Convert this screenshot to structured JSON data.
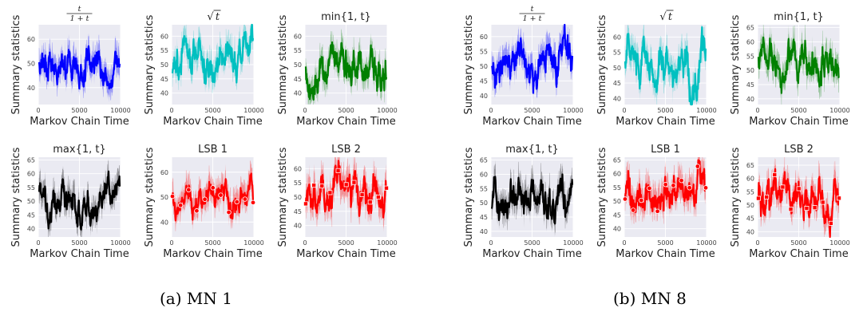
{
  "captions": {
    "a": "(a) MN 1",
    "b": "(b) MN 8"
  },
  "chart_data": [
    {
      "id": "a-t1",
      "type": "line",
      "group": "a",
      "title_kind": "frac",
      "title": "t/(1+t)",
      "xlabel": "Markov Chain Time",
      "ylabel": "Summary statistics",
      "xlim": [
        0,
        10000
      ],
      "ylim": [
        33,
        66
      ],
      "xticks": [
        0,
        5000,
        10000
      ],
      "yticks": [
        40,
        50,
        60
      ],
      "mean": 50,
      "spread": 4.5,
      "band": 7,
      "color": "#0000ff",
      "marker": "none",
      "grid": true,
      "background": "#eaeaf2",
      "seed": 11
    },
    {
      "id": "a-sqrt",
      "type": "line",
      "group": "a",
      "title_kind": "sqrt",
      "title": "√t",
      "xlabel": "Markov Chain Time",
      "ylabel": "Summary statistics",
      "xlim": [
        0,
        10000
      ],
      "ylim": [
        36,
        64
      ],
      "xticks": [
        0,
        5000,
        10000
      ],
      "yticks": [
        40,
        45,
        50,
        55,
        60
      ],
      "mean": 50,
      "spread": 4.5,
      "band": 6,
      "color": "#00c0c0",
      "marker": "none",
      "grid": true,
      "background": "#eaeaf2",
      "seed": 23
    },
    {
      "id": "a-min",
      "type": "line",
      "group": "a",
      "title_kind": "plain",
      "title": "min{1, t}",
      "xlabel": "Markov Chain Time",
      "ylabel": "Summary statistics",
      "xlim": [
        0,
        10000
      ],
      "ylim": [
        36,
        64
      ],
      "xticks": [
        0,
        5000,
        10000
      ],
      "yticks": [
        40,
        45,
        50,
        55,
        60
      ],
      "mean": 50,
      "spread": 4.5,
      "band": 6,
      "color": "#008000",
      "marker": "none",
      "grid": true,
      "background": "#eaeaf2",
      "seed": 37
    },
    {
      "id": "a-max",
      "type": "line",
      "group": "a",
      "title_kind": "plain",
      "title": "max{1, t}",
      "xlabel": "Markov Chain Time",
      "ylabel": "Summary statistics",
      "xlim": [
        0,
        10000
      ],
      "ylim": [
        37,
        66
      ],
      "xticks": [
        0,
        5000,
        10000
      ],
      "yticks": [
        40,
        45,
        50,
        55,
        60,
        65
      ],
      "mean": 50,
      "spread": 4.5,
      "band": 6,
      "color": "#000000",
      "marker": "none",
      "grid": true,
      "background": "#eaeaf2",
      "seed": 41
    },
    {
      "id": "a-lsb1",
      "type": "line",
      "group": "a",
      "title_kind": "plain",
      "title": "LSB 1",
      "xlabel": "Markov Chain Time",
      "ylabel": "Summary statistics",
      "xlim": [
        0,
        10000
      ],
      "ylim": [
        34,
        66
      ],
      "xticks": [
        0,
        5000,
        10000
      ],
      "yticks": [
        40,
        50,
        60
      ],
      "mean": 49,
      "spread": 4,
      "band": 7,
      "color": "#ff0000",
      "marker": "circle",
      "grid": true,
      "background": "#eaeaf2",
      "seed": 53
    },
    {
      "id": "a-lsb2",
      "type": "line",
      "group": "a",
      "title_kind": "plain",
      "title": "LSB 2",
      "xlabel": "Markov Chain Time",
      "ylabel": "Summary statistics",
      "xlim": [
        0,
        10000
      ],
      "ylim": [
        36,
        64
      ],
      "xticks": [
        0,
        5000,
        10000
      ],
      "yticks": [
        40,
        45,
        50,
        55,
        60
      ],
      "mean": 49,
      "spread": 4,
      "band": 7,
      "color": "#ff0000",
      "marker": "square",
      "grid": true,
      "background": "#eaeaf2",
      "seed": 67
    },
    {
      "id": "b-t1",
      "type": "line",
      "group": "b",
      "title_kind": "frac",
      "title": "t/(1+t)",
      "xlabel": "Markov Chain Time",
      "ylabel": "Summary statistics",
      "xlim": [
        0,
        10000
      ],
      "ylim": [
        37,
        64
      ],
      "xticks": [
        0,
        5000,
        10000
      ],
      "yticks": [
        40,
        45,
        50,
        55,
        60
      ],
      "mean": 51,
      "spread": 4.5,
      "band": 6,
      "color": "#0000ff",
      "marker": "none",
      "grid": true,
      "background": "#eaeaf2",
      "seed": 71
    },
    {
      "id": "b-sqrt",
      "type": "line",
      "group": "b",
      "title_kind": "sqrt",
      "title": "√t",
      "xlabel": "Markov Chain Time",
      "ylabel": "Summary statistics",
      "xlim": [
        0,
        10000
      ],
      "ylim": [
        38,
        64
      ],
      "xticks": [
        0,
        5000,
        10000
      ],
      "yticks": [
        40,
        45,
        50,
        55,
        60
      ],
      "mean": 51,
      "spread": 4.5,
      "band": 6,
      "color": "#00c0c0",
      "marker": "none",
      "grid": true,
      "background": "#eaeaf2",
      "seed": 83
    },
    {
      "id": "b-min",
      "type": "line",
      "group": "b",
      "title_kind": "plain",
      "title": "min{1, t}",
      "xlabel": "Markov Chain Time",
      "ylabel": "Summary statistics",
      "xlim": [
        0,
        10000
      ],
      "ylim": [
        38,
        66
      ],
      "xticks": [
        0,
        5000,
        10000
      ],
      "yticks": [
        40,
        45,
        50,
        55,
        60,
        65
      ],
      "mean": 52,
      "spread": 4.5,
      "band": 6,
      "color": "#008000",
      "marker": "none",
      "grid": true,
      "background": "#eaeaf2",
      "seed": 97
    },
    {
      "id": "b-max",
      "type": "line",
      "group": "b",
      "title_kind": "plain",
      "title": "max{1, t}",
      "xlabel": "Markov Chain Time",
      "ylabel": "Summary statistics",
      "xlim": [
        0,
        10000
      ],
      "ylim": [
        38,
        66
      ],
      "xticks": [
        0,
        5000,
        10000
      ],
      "yticks": [
        40,
        45,
        50,
        55,
        60,
        65
      ],
      "mean": 51,
      "spread": 4.5,
      "band": 6,
      "color": "#000000",
      "marker": "none",
      "grid": true,
      "background": "#eaeaf2",
      "seed": 101
    },
    {
      "id": "b-lsb1",
      "type": "line",
      "group": "b",
      "title_kind": "plain",
      "title": "LSB 1",
      "xlabel": "Markov Chain Time",
      "ylabel": "Summary statistics",
      "xlim": [
        0,
        10000
      ],
      "ylim": [
        37,
        66
      ],
      "xticks": [
        0,
        5000,
        10000
      ],
      "yticks": [
        40,
        45,
        50,
        55,
        60,
        65
      ],
      "mean": 53,
      "spread": 4.5,
      "band": 7,
      "color": "#ff0000",
      "marker": "circle",
      "grid": true,
      "background": "#eaeaf2",
      "seed": 113
    },
    {
      "id": "b-lsb2",
      "type": "line",
      "group": "b",
      "title_kind": "plain",
      "title": "LSB 2",
      "xlabel": "Markov Chain Time",
      "ylabel": "Summary statistics",
      "xlim": [
        0,
        10000
      ],
      "ylim": [
        38,
        68
      ],
      "xticks": [
        0,
        5000,
        10000
      ],
      "yticks": [
        40,
        45,
        50,
        55,
        60,
        65
      ],
      "mean": 52,
      "spread": 4.5,
      "band": 7,
      "color": "#ff0000",
      "marker": "square",
      "grid": true,
      "background": "#eaeaf2",
      "seed": 127
    }
  ]
}
